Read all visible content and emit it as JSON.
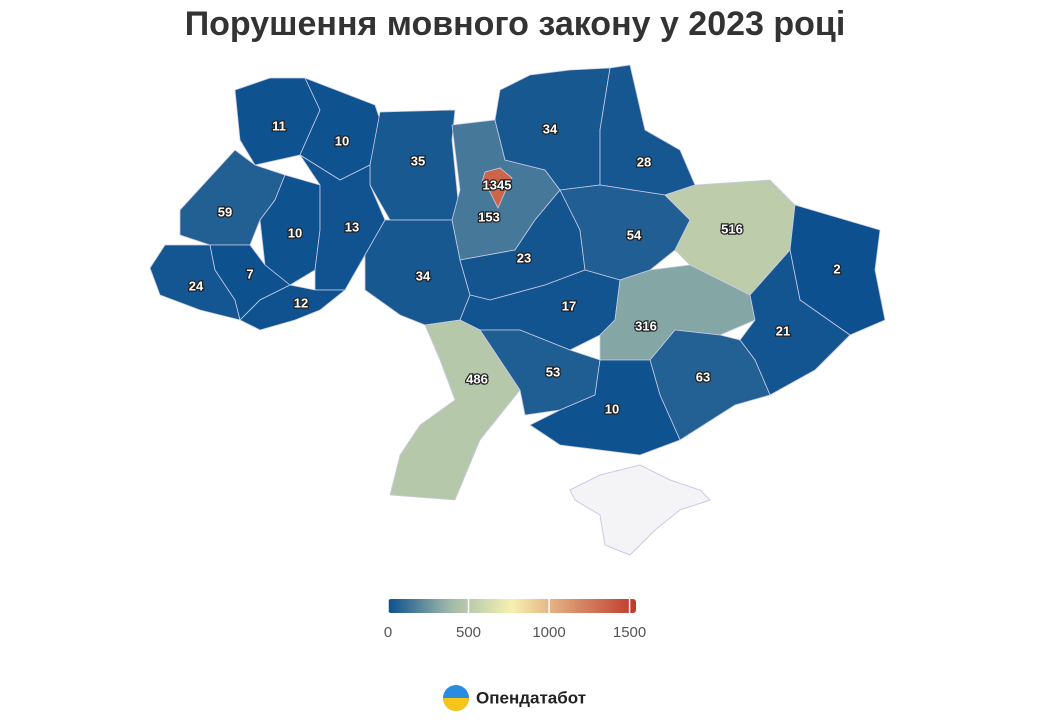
{
  "chart_data": {
    "type": "choropleth",
    "title": "Порушення мовного закону у 2023 році",
    "values": [
      11,
      10,
      35,
      153,
      1345,
      34,
      28,
      59,
      10,
      13,
      34,
      24,
      7,
      12,
      23,
      54,
      516,
      2,
      17,
      316,
      21,
      486,
      53,
      63,
      10
    ],
    "colorscale": [
      "#0b4f8f",
      "#9fb9a8",
      "#f7f1b0",
      "#d98f6b",
      "#c0392b"
    ],
    "colorbar_lim": [
      0,
      1540
    ],
    "colorbar_ticks": [
      0,
      500,
      1000,
      1500
    ]
  },
  "footer": "Опендатабот"
}
